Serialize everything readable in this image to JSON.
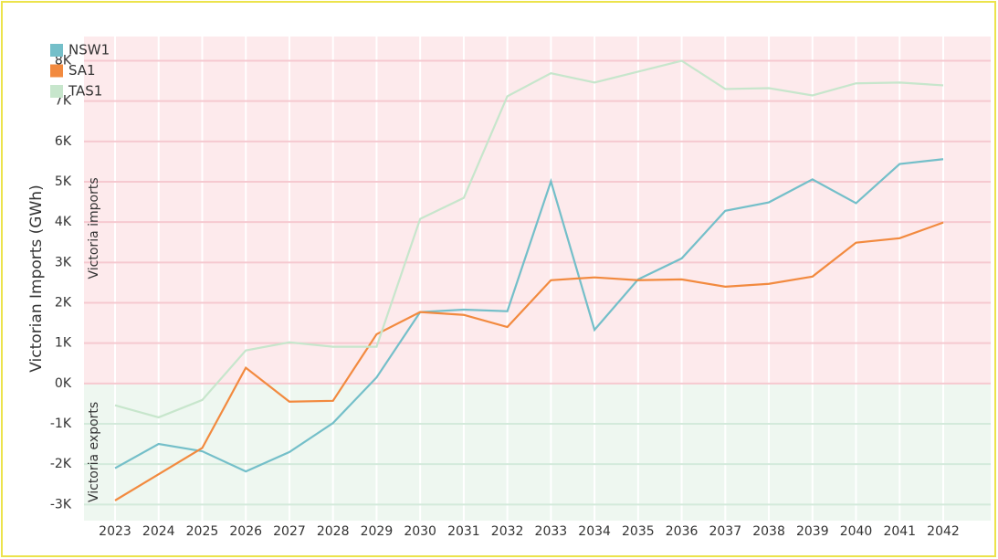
{
  "chart_data": {
    "type": "line",
    "y_label": "Victorian Imports (GWh)",
    "annotations": [
      "Victoria imports",
      "Victoria exports"
    ],
    "categories": [
      "2023",
      "2024",
      "2025",
      "2026",
      "2027",
      "2028",
      "2029",
      "2030",
      "2031",
      "2032",
      "2033",
      "2034",
      "2035",
      "2036",
      "2037",
      "2038",
      "2039",
      "2040",
      "2041",
      "2042"
    ],
    "series": [
      {
        "name": "NSW1",
        "color": "#74bfc9",
        "values": [
          -2100,
          -1500,
          -1680,
          -2180,
          -1700,
          -980,
          150,
          1770,
          1830,
          1790,
          5010,
          1330,
          2580,
          3100,
          4280,
          4490,
          5060,
          4470,
          5440,
          5560
        ]
      },
      {
        "name": "SA1",
        "color": "#f28a3f",
        "values": [
          -2900,
          -2250,
          -1600,
          390,
          -450,
          -430,
          1220,
          1770,
          1700,
          1400,
          2560,
          2630,
          2560,
          2580,
          2400,
          2470,
          2650,
          3490,
          3600,
          3990
        ]
      },
      {
        "name": "TAS1",
        "color": "#c7e6cc",
        "values": [
          -540,
          -840,
          -410,
          820,
          1020,
          910,
          910,
          4080,
          4600,
          7120,
          7690,
          7460,
          7730,
          8000,
          7300,
          7320,
          7140,
          7440,
          7460,
          7390
        ]
      }
    ],
    "ylim": [
      -3400,
      8600
    ],
    "yticks": [
      {
        "value": -3000,
        "label": "-3K"
      },
      {
        "value": -2000,
        "label": "-2K"
      },
      {
        "value": -1000,
        "label": "-1K"
      },
      {
        "value": 0,
        "label": "0K"
      },
      {
        "value": 1000,
        "label": "1K"
      },
      {
        "value": 2000,
        "label": "2K"
      },
      {
        "value": 3000,
        "label": "3K"
      },
      {
        "value": 4000,
        "label": "4K"
      },
      {
        "value": 5000,
        "label": "5K"
      },
      {
        "value": 6000,
        "label": "6K"
      },
      {
        "value": 7000,
        "label": "7K"
      },
      {
        "value": 8000,
        "label": "8K"
      }
    ],
    "grid": true,
    "legend": "top-left"
  }
}
